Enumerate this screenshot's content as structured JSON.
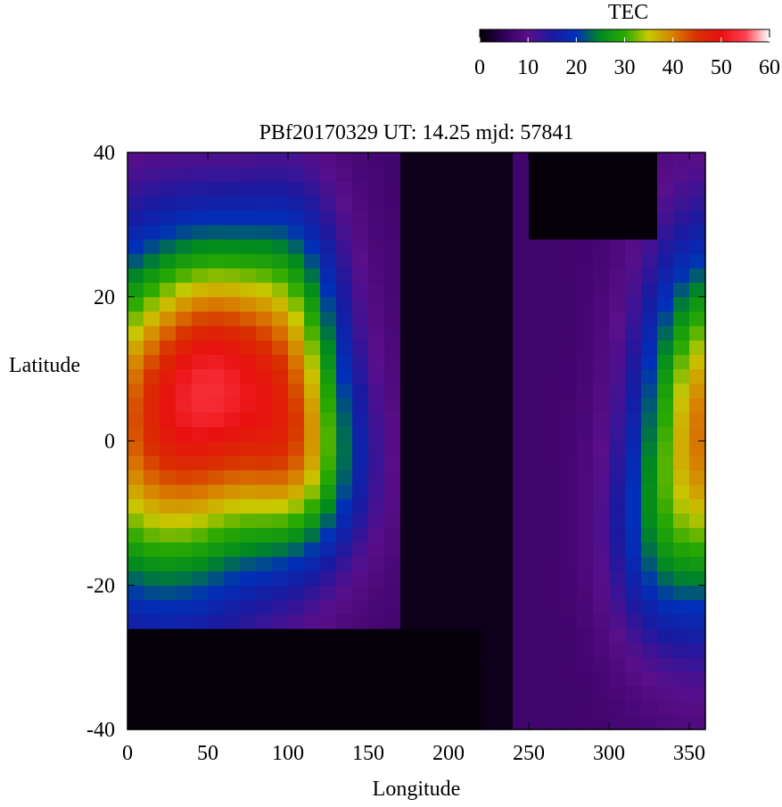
{
  "chart_data": {
    "type": "heatmap",
    "title": "PBf20170329  UT: 14.25  mjd: 57841",
    "xlabel": "Longitude",
    "ylabel": "Latitude",
    "xlim": [
      0,
      360
    ],
    "ylim": [
      -40,
      40
    ],
    "xticks": [
      0,
      50,
      100,
      150,
      200,
      250,
      300,
      350
    ],
    "yticks": [
      -40,
      -20,
      0,
      20,
      40
    ],
    "x_step_deg": 10,
    "y_step_deg": 2,
    "grid": false,
    "colorbar": {
      "label": "TEC",
      "range": [
        0,
        60
      ],
      "ticks": [
        0,
        10,
        20,
        30,
        40,
        50,
        60
      ],
      "placement": "top-right",
      "colormap": [
        {
          "v": 0,
          "c": "#000000"
        },
        {
          "v": 5,
          "c": "#30005a"
        },
        {
          "v": 10,
          "c": "#5a0e8a"
        },
        {
          "v": 15,
          "c": "#1a1aa0"
        },
        {
          "v": 20,
          "c": "#0030b8"
        },
        {
          "v": 25,
          "c": "#008a20"
        },
        {
          "v": 30,
          "c": "#2aaa00"
        },
        {
          "v": 35,
          "c": "#c8c800"
        },
        {
          "v": 40,
          "c": "#d88000"
        },
        {
          "v": 45,
          "c": "#d83000"
        },
        {
          "v": 50,
          "c": "#e81010"
        },
        {
          "v": 55,
          "c": "#ff4050"
        },
        {
          "v": 60,
          "c": "#ffffff"
        }
      ]
    },
    "field": {
      "background_tec": 7,
      "features": [
        {
          "shape": "gaussian",
          "lon": 22,
          "lat": 2,
          "sigma_lon": 50,
          "sigma_lat": 17,
          "amp": 36
        },
        {
          "shape": "gaussian",
          "lon": 62,
          "lat": 12,
          "sigma_lon": 30,
          "sigma_lat": 12,
          "amp": 18
        },
        {
          "shape": "gaussian",
          "lon": 105,
          "lat": 12,
          "sigma_lon": 22,
          "sigma_lat": 15,
          "amp": 16
        },
        {
          "shape": "gaussian",
          "lon": 110,
          "lat": -4,
          "sigma_lon": 28,
          "sigma_lat": 9,
          "amp": 14
        },
        {
          "shape": "gaussian",
          "lon": 362,
          "lat": 2,
          "sigma_lon": 28,
          "sigma_lat": 17,
          "amp": 34
        },
        {
          "shape": "gaussian",
          "lon": 325,
          "lat": -14,
          "sigma_lon": 20,
          "sigma_lat": 10,
          "amp": 8
        },
        {
          "shape": "lowcap",
          "lon_from": 0,
          "lon_to": 220,
          "lat_below": -26,
          "value": 0.5
        },
        {
          "shape": "lowcap",
          "lon_from": 255,
          "lon_to": 330,
          "lat_above": 27,
          "value": 0.5
        },
        {
          "shape": "low",
          "lon_from": 175,
          "lon_to": 240,
          "value": 1.5
        }
      ]
    }
  }
}
